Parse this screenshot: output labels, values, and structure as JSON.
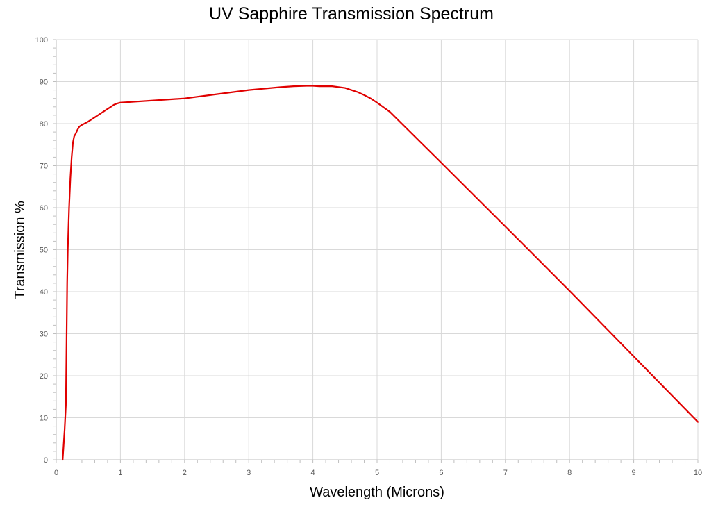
{
  "chart_data": {
    "type": "line",
    "title": "UV Sapphire Transmission Spectrum",
    "xlabel": "Wavelength (Microns)",
    "ylabel": "Transmission %",
    "xlim": [
      0,
      10
    ],
    "ylim": [
      0,
      100
    ],
    "x_ticks": [
      0,
      1,
      2,
      3,
      4,
      5,
      6,
      7,
      8,
      9,
      10
    ],
    "y_ticks": [
      0,
      10,
      20,
      30,
      40,
      50,
      60,
      70,
      80,
      90,
      100
    ],
    "grid": true,
    "legend": "none",
    "series": [
      {
        "color": "#e00000",
        "x": [
          0.1,
          0.13,
          0.15,
          0.16,
          0.17,
          0.18,
          0.19,
          0.2,
          0.22,
          0.24,
          0.26,
          0.28,
          0.3,
          0.33,
          0.36,
          0.4,
          0.5,
          0.6,
          0.7,
          0.8,
          0.9,
          0.95,
          1.0,
          1.2,
          1.5,
          2.0,
          2.5,
          3.0,
          3.5,
          3.7,
          3.9,
          4.0,
          4.1,
          4.3,
          4.5,
          4.7,
          4.8,
          4.9,
          5.0,
          5.2,
          6.0,
          7.0,
          8.0,
          9.0,
          10.0
        ],
        "y": [
          0,
          7,
          13,
          27,
          42,
          50,
          55,
          60,
          67,
          72,
          75.5,
          77,
          77.5,
          78.5,
          79.3,
          79.7,
          80.5,
          81.5,
          82.5,
          83.5,
          84.5,
          84.8,
          85,
          85.2,
          85.5,
          86,
          87,
          88,
          88.7,
          88.9,
          89,
          89,
          88.9,
          88.9,
          88.5,
          87.5,
          86.8,
          86,
          85,
          82.8,
          70.7,
          55.5,
          40.2,
          24.6,
          9
        ]
      }
    ]
  }
}
